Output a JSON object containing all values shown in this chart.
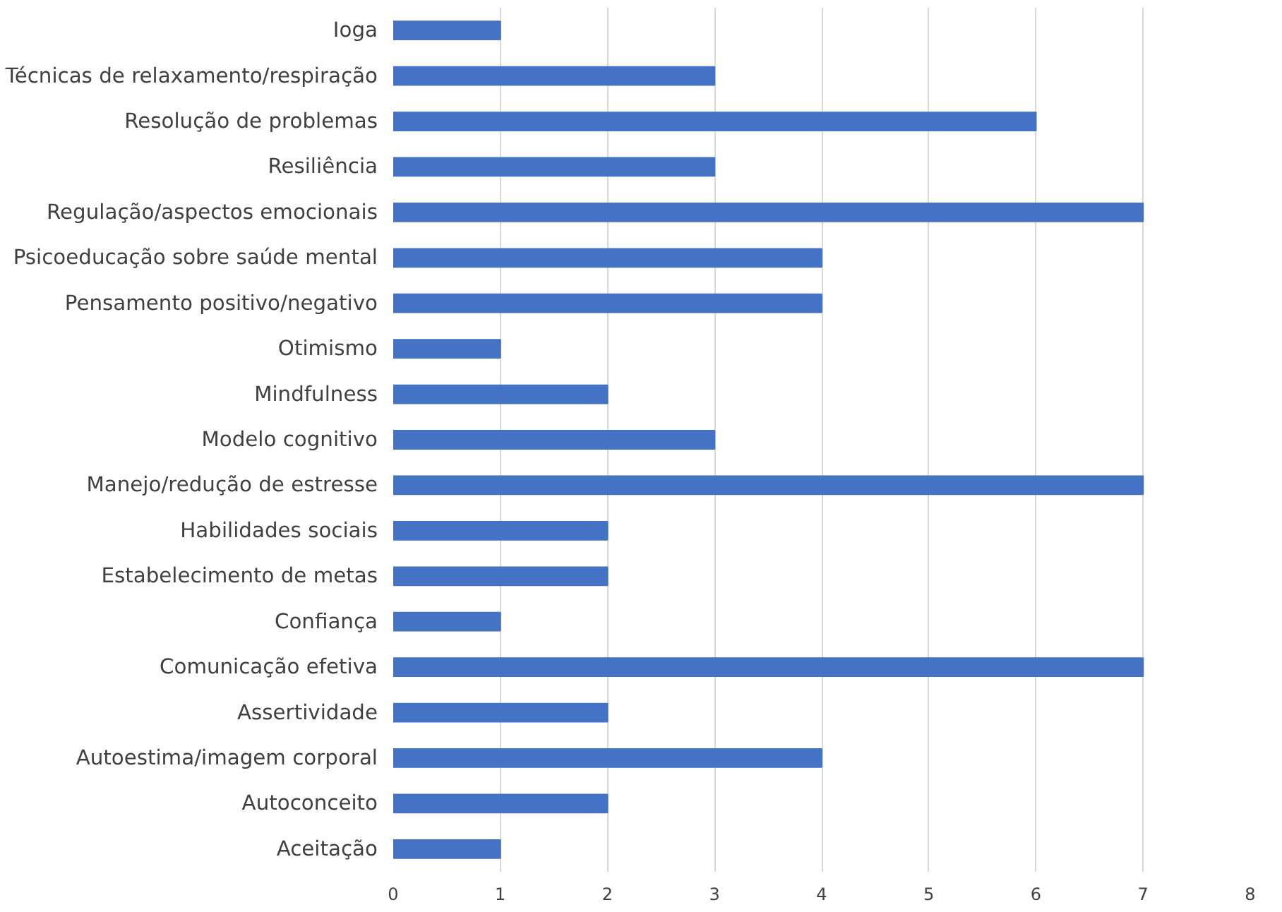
{
  "chart_data": {
    "type": "bar",
    "orientation": "horizontal",
    "categories": [
      "Ioga",
      "Técnicas de relaxamento/respiração",
      "Resolução de problemas",
      "Resiliência",
      "Regulação/aspectos emocionais",
      "Psicoeducação sobre saúde mental",
      "Pensamento positivo/negativo",
      "Otimismo",
      "Mindfulness",
      "Modelo cognitivo",
      "Manejo/redução de estresse",
      "Habilidades sociais",
      "Estabelecimento de metas",
      "Confiança",
      "Comunicação efetiva",
      "Assertividade",
      "Autoestima/imagem corporal",
      "Autoconceito",
      "Aceitação"
    ],
    "values": [
      1,
      3,
      6,
      3,
      7,
      4,
      4,
      1,
      2,
      3,
      7,
      2,
      2,
      1,
      7,
      2,
      4,
      2,
      1
    ],
    "color": "#4472c4",
    "xlim": [
      0,
      8
    ],
    "xticks": [
      0,
      1,
      2,
      3,
      4,
      5,
      6,
      7,
      8
    ],
    "grid": "x"
  }
}
